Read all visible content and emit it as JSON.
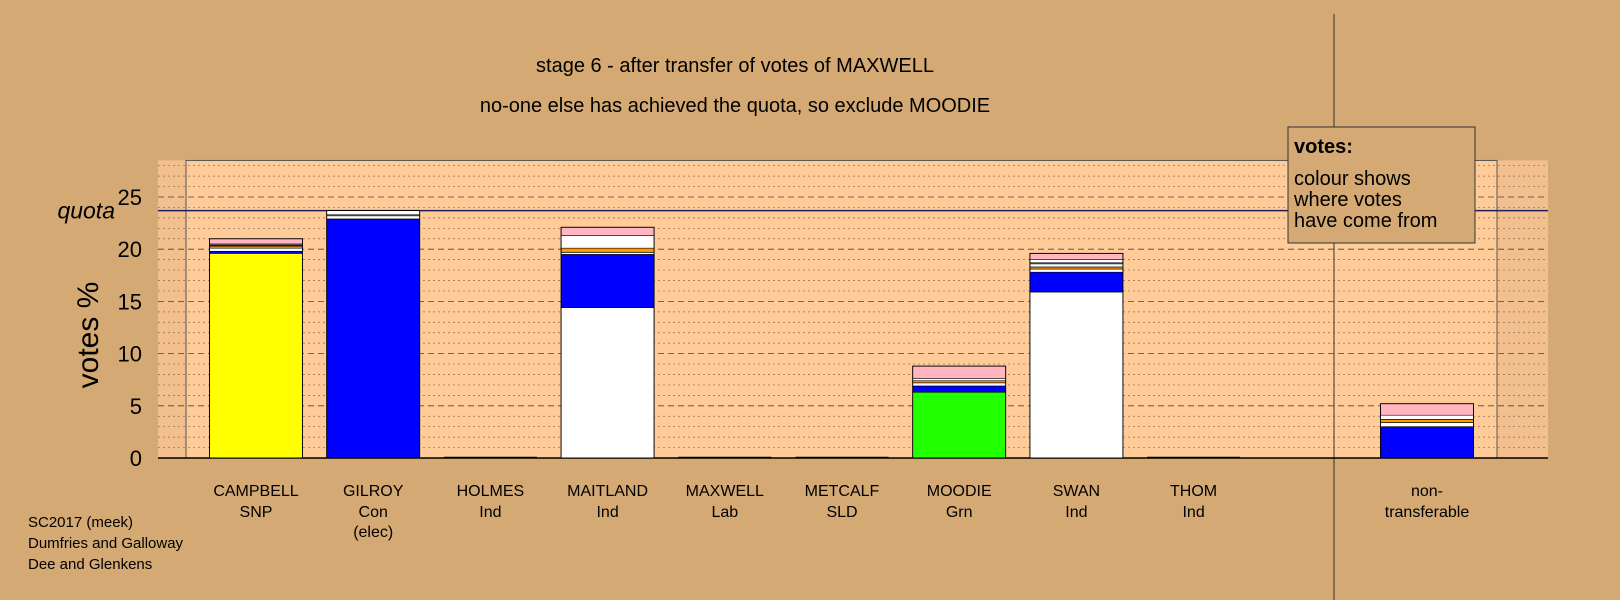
{
  "chart_data": {
    "type": "bar",
    "stacked": true,
    "title": "stage 6 - after transfer of votes of MAXWELL",
    "subtitle": "no-one else has achieved the quota, so exclude MOODIE",
    "ylabel": "votes %",
    "ylim": [
      0,
      28.5
    ],
    "yticks": [
      0,
      5,
      10,
      15,
      20,
      25
    ],
    "quota": {
      "label": "quota",
      "value": 23.7
    },
    "grid": "dashed major at 5, dotted minor at 1",
    "legend_box": {
      "title": "votes:",
      "lines": [
        "colour shows",
        "where votes",
        "have come from"
      ],
      "placement": "top-right"
    },
    "colors": {
      "snp": "#ffff00",
      "con": "#0000ff",
      "ind": "#ffffff",
      "grn": "#22ff00",
      "lab": "#ff0000",
      "ld": "#ff9900",
      "other": "#ffb6c1",
      "panel": "#ffcc99",
      "background": "#d4a973"
    },
    "candidates": [
      {
        "name": "CAMPBELL",
        "party": "SNP",
        "note": "",
        "segments": [
          {
            "source": "snp",
            "value": 19.6
          },
          {
            "source": "con",
            "value": 0.2
          },
          {
            "source": "ind",
            "value": 0.3
          },
          {
            "source": "ld",
            "value": 0.2
          },
          {
            "source": "lab",
            "value": 0.1
          },
          {
            "source": "ind",
            "value": 0.1
          },
          {
            "source": "other",
            "value": 0.5
          }
        ]
      },
      {
        "name": "GILROY",
        "party": "Con",
        "note": "(elec)",
        "segments": [
          {
            "source": "con",
            "value": 22.9
          },
          {
            "source": "ind",
            "value": 0.3
          },
          {
            "source": "ld",
            "value": 0.1
          },
          {
            "source": "ind",
            "value": 0.4
          }
        ]
      },
      {
        "name": "HOLMES",
        "party": "Ind",
        "note": "",
        "segments": []
      },
      {
        "name": "MAITLAND",
        "party": "Ind",
        "note": "",
        "segments": [
          {
            "source": "ind",
            "value": 14.4
          },
          {
            "source": "con",
            "value": 5.1
          },
          {
            "source": "ind",
            "value": 0.2
          },
          {
            "source": "ld",
            "value": 0.4
          },
          {
            "source": "ind",
            "value": 1.2
          },
          {
            "source": "other",
            "value": 0.8
          }
        ]
      },
      {
        "name": "MAXWELL",
        "party": "Lab",
        "note": "",
        "segments": []
      },
      {
        "name": "METCALF",
        "party": "SLD",
        "note": "",
        "segments": []
      },
      {
        "name": "MOODIE",
        "party": "Grn",
        "note": "",
        "segments": [
          {
            "source": "grn",
            "value": 6.3
          },
          {
            "source": "con",
            "value": 0.6
          },
          {
            "source": "ind",
            "value": 0.3
          },
          {
            "source": "ld",
            "value": 0.2
          },
          {
            "source": "ind",
            "value": 0.2
          },
          {
            "source": "other",
            "value": 1.2
          }
        ]
      },
      {
        "name": "SWAN",
        "party": "Ind",
        "note": "",
        "segments": [
          {
            "source": "ind",
            "value": 15.9
          },
          {
            "source": "con",
            "value": 1.9
          },
          {
            "source": "ind",
            "value": 0.3
          },
          {
            "source": "ld",
            "value": 0.2
          },
          {
            "source": "ind",
            "value": 0.3
          },
          {
            "source": "ld",
            "value": 0.1
          },
          {
            "source": "ind",
            "value": 0.3
          },
          {
            "source": "other",
            "value": 0.6
          }
        ]
      },
      {
        "name": "THOM",
        "party": "Ind",
        "note": "",
        "segments": []
      }
    ],
    "nontransferable": {
      "label_line1": "non-",
      "label_line2": "transferable",
      "segments": [
        {
          "source": "con",
          "value": 3.0
        },
        {
          "source": "ind",
          "value": 0.4
        },
        {
          "source": "ld",
          "value": 0.3
        },
        {
          "source": "ind",
          "value": 0.4
        },
        {
          "source": "other",
          "value": 1.1
        }
      ]
    }
  },
  "footer": {
    "line1": "SC2017 (meek)",
    "line2": "Dumfries and Galloway",
    "line3": "Dee and Glenkens"
  }
}
